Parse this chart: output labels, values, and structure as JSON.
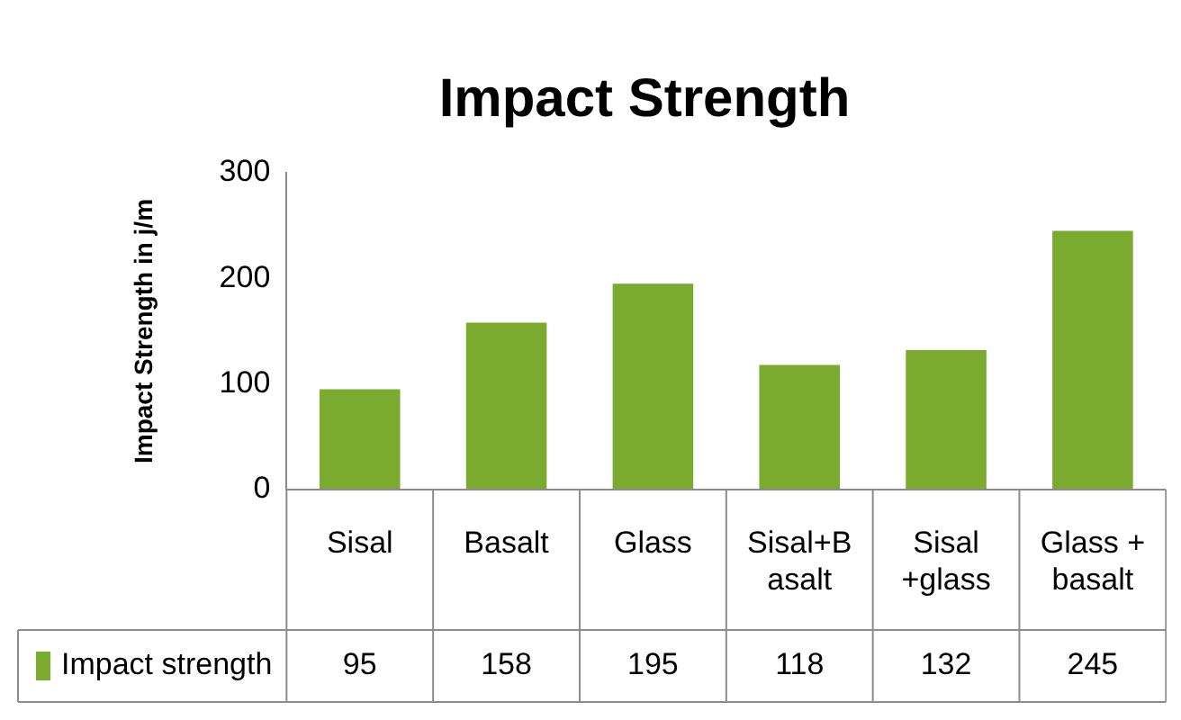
{
  "chart_data": {
    "type": "bar",
    "title": "Impact Strength",
    "ylabel": "Impact Strength in j/m",
    "categories": [
      "Sisal",
      "Basalt",
      "Glass",
      "Sisal+Basalt",
      "Sisal +glass",
      "Glass + basalt"
    ],
    "series": [
      {
        "name": "Impact strength",
        "color": "#7aaa2e",
        "values": [
          95,
          158,
          195,
          118,
          132,
          245
        ]
      }
    ],
    "ylim": [
      0,
      300
    ],
    "yticks": [
      0,
      100,
      200,
      300
    ],
    "grid": false,
    "legend": "bottom",
    "data_labels": true
  }
}
